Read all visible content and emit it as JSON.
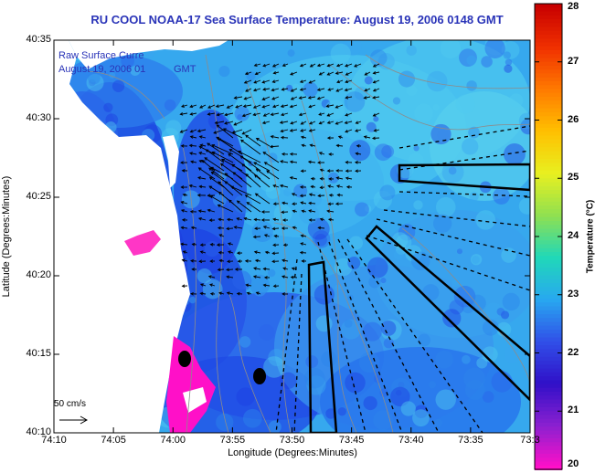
{
  "title": "RU COOL  NOAA-17  Sea Surface Temperature:  August 19, 2006 0148 GMT",
  "overlay": {
    "line1": "Raw Surface Curre",
    "line2": "August 19, 2006 01",
    "line2_tail": "GMT"
  },
  "axes": {
    "xlabel": "Longitude (Degrees:Minutes)",
    "ylabel": "Latitude (Degrees:Minutes)",
    "x_ticks": [
      "74:10",
      "74:05",
      "74:00",
      "73:55",
      "73:50",
      "73:45",
      "73:40",
      "73:35",
      "73:3"
    ],
    "y_ticks": [
      "40:35",
      "40:30",
      "40:25",
      "40:20",
      "40:15",
      "40:10"
    ]
  },
  "scale": {
    "label": "50 cm/s"
  },
  "colorbar": {
    "title": "Temperature (°C)",
    "ticks": [
      "28",
      "27",
      "26",
      "25",
      "24",
      "23",
      "22",
      "21",
      "20"
    ],
    "colors": [
      "#c80000",
      "#f03000",
      "#ff7a00",
      "#ffc000",
      "#e8f020",
      "#90e050",
      "#20d8b8",
      "#28a8f0",
      "#3050e8",
      "#3010c8",
      "#8a20d0",
      "#ff10c8"
    ]
  },
  "colors": {
    "title": "#2a34b8",
    "land": "#ffffff",
    "current_vector": "#000000",
    "contour": "#8c8c8c"
  }
}
